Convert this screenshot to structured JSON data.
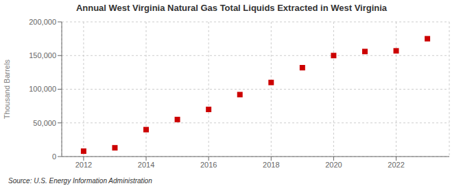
{
  "chart_data": {
    "type": "scatter",
    "title": "Annual West Virginia Natural Gas Total Liquids Extracted in West Virginia",
    "ylabel": "Thousand Barrels",
    "annotations": [
      "Source: U.S. Energy Information Administration"
    ],
    "x": [
      2012,
      2013,
      2014,
      2015,
      2016,
      2017,
      2018,
      2019,
      2020,
      2021,
      2022,
      2023
    ],
    "values": [
      8000,
      13000,
      40000,
      55000,
      70000,
      92000,
      110000,
      132000,
      150000,
      156000,
      157000,
      175000
    ],
    "color": "#cc0000",
    "marker": "square",
    "xlim": [
      2011.3,
      2023.7
    ],
    "xticks": [
      2012,
      2014,
      2016,
      2018,
      2020,
      2022
    ],
    "ylim": [
      0,
      200000
    ],
    "yticks": [
      0,
      {
        "value": 50000,
        "label": "50,000"
      },
      {
        "value": 100000,
        "label": "100,000"
      },
      {
        "value": 150000,
        "label": "150,000"
      },
      {
        "value": 200000,
        "label": "200,000"
      }
    ],
    "grid": true
  }
}
